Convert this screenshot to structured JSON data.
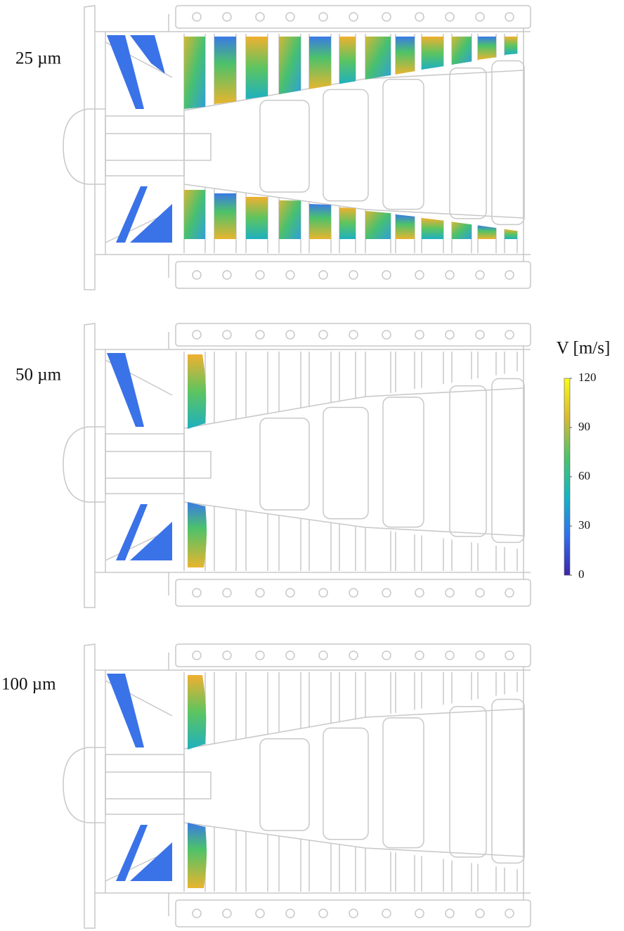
{
  "panels": [
    {
      "label": "25 µm"
    },
    {
      "label": "50 µm"
    },
    {
      "label": "100 µm"
    }
  ],
  "colorbar": {
    "title": "V [m/s]",
    "lim": [
      0,
      120
    ],
    "ticks": [
      0,
      30,
      60,
      90,
      120
    ],
    "colormap": [
      "#3e26a8",
      "#2f6ff0",
      "#13b5c6",
      "#4bc46a",
      "#d9ba32",
      "#f9fb15"
    ]
  }
}
